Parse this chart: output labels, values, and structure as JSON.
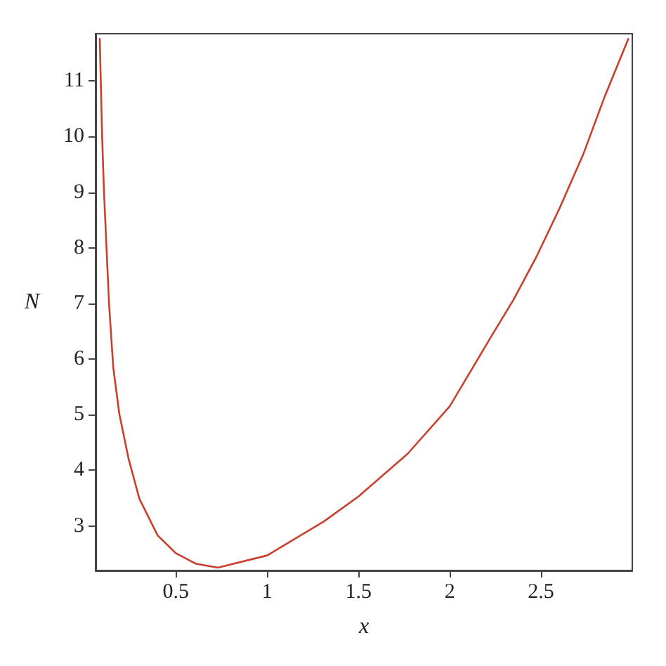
{
  "chart_data": {
    "type": "line",
    "xlabel": "x",
    "ylabel": "N",
    "xlim": [
      0.06,
      3.0
    ],
    "ylim": [
      2.2,
      11.85
    ],
    "xticks": [
      0.5,
      1,
      1.5,
      2,
      2.5
    ],
    "yticks": [
      3,
      4,
      5,
      6,
      7,
      8,
      9,
      10,
      11
    ],
    "grid": false,
    "marker": "none",
    "line_style": "solid",
    "series": [
      {
        "color": "#c8402e",
        "x": [
          0.083,
          0.096,
          0.106,
          0.12,
          0.134,
          0.157,
          0.19,
          0.24,
          0.3,
          0.4,
          0.5,
          0.61,
          0.73,
          1.0,
          1.31,
          1.5,
          1.77,
          2.0,
          2.23,
          2.35,
          2.475,
          2.6,
          2.73,
          2.85,
          2.98
        ],
        "values": [
          11.77,
          10.0,
          9.03,
          8.0,
          6.99,
          5.85,
          5.02,
          4.22,
          3.49,
          2.83,
          2.51,
          2.32,
          2.25,
          2.47,
          3.08,
          3.53,
          4.3,
          5.15,
          6.42,
          7.07,
          7.84,
          8.7,
          9.67,
          10.73,
          11.77
        ]
      }
    ]
  }
}
